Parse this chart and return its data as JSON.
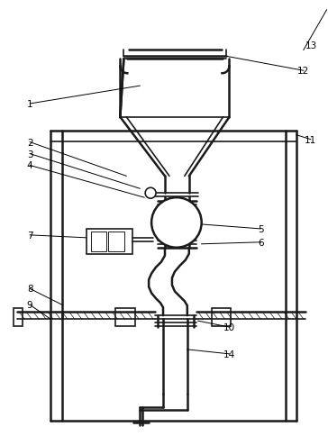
{
  "bg_color": "#ffffff",
  "line_color": "#1a1a1a",
  "lw": 1.2,
  "lw2": 1.8,
  "lw_thin": 0.7
}
